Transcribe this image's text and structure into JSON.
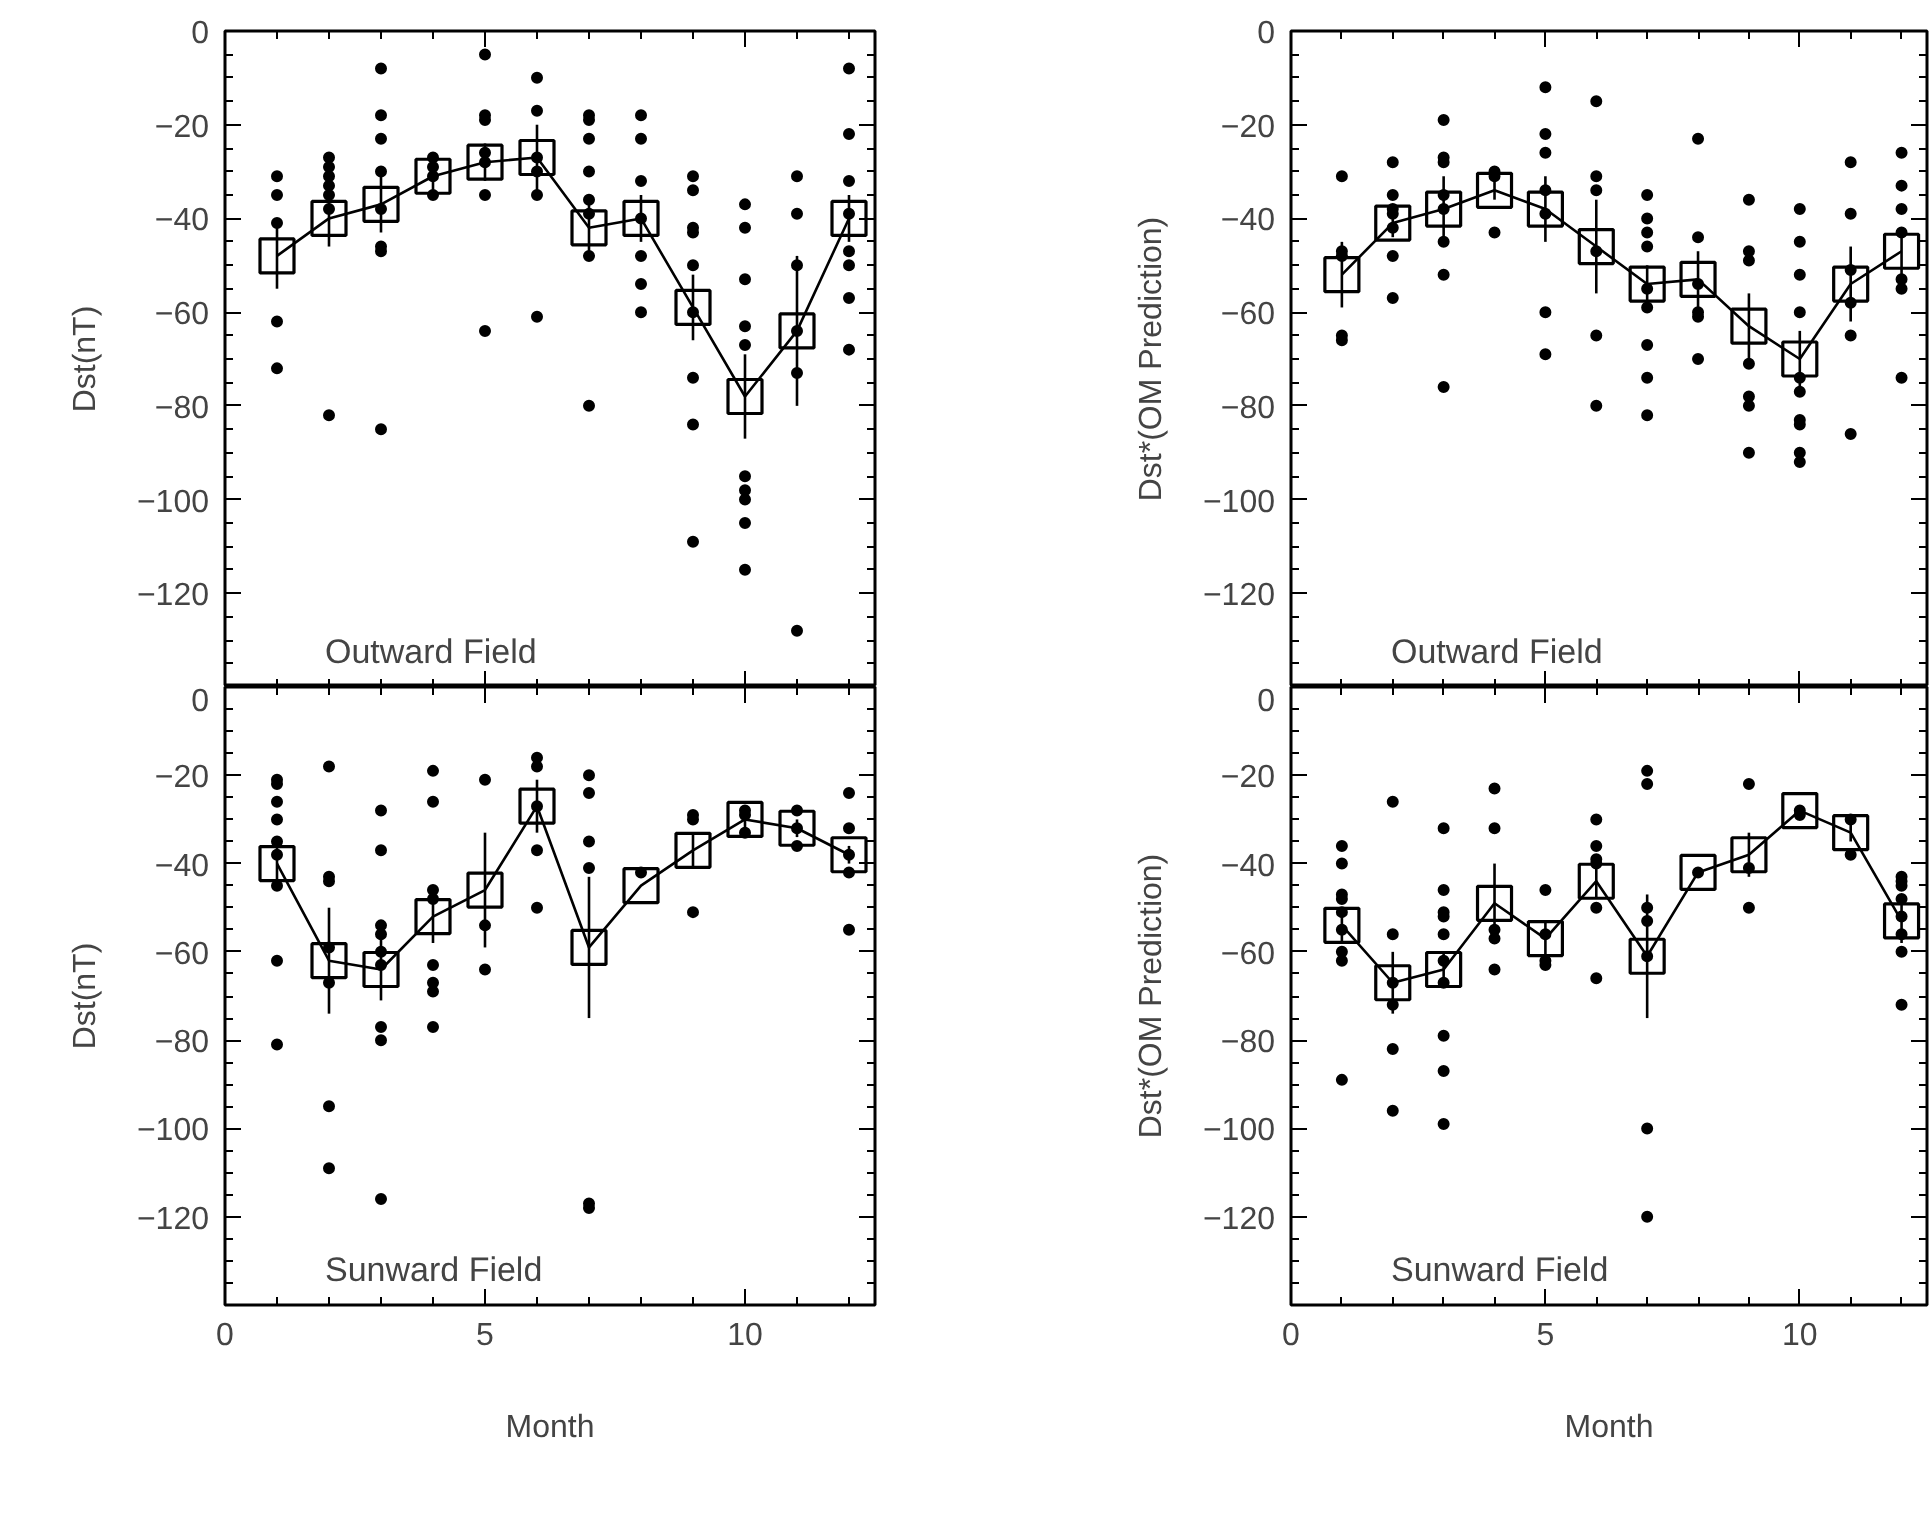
{
  "chart_data": [
    {
      "type": "scatter",
      "ylabel": "Dst(nT)",
      "annotations": [
        "Outward Field"
      ],
      "xlim": [
        0,
        12.5
      ],
      "xticks": [
        0,
        5,
        10
      ],
      "ylim": [
        -140,
        0
      ],
      "yticks": [
        0,
        -20,
        -40,
        -60,
        -80,
        -100,
        -120
      ],
      "tick_labels": "y",
      "grid": false,
      "series": [
        {
          "color": "#000000",
          "marker": "circle",
          "x": [
            1,
            1,
            1,
            1,
            1,
            2,
            2,
            2,
            2,
            2,
            2,
            2,
            3,
            3,
            3,
            3,
            3,
            3,
            3,
            3,
            4,
            4,
            4,
            4,
            5,
            5,
            5,
            5,
            5,
            5,
            5,
            6,
            6,
            6,
            6,
            6,
            6,
            7,
            7,
            7,
            7,
            7,
            7,
            7,
            7,
            8,
            8,
            8,
            8,
            8,
            8,
            8,
            9,
            9,
            9,
            9,
            9,
            9,
            9,
            9,
            9,
            10,
            10,
            10,
            10,
            10,
            10,
            10,
            10,
            10,
            10,
            11,
            11,
            11,
            11,
            11,
            11,
            12,
            12,
            12,
            12,
            12,
            12,
            12,
            12
          ],
          "values": [
            -31,
            -35,
            -41,
            -62,
            -72,
            -27,
            -29,
            -31,
            -33,
            -35,
            -38,
            -82,
            -8,
            -18,
            -23,
            -30,
            -38,
            -46,
            -47,
            -85,
            -27,
            -29,
            -31,
            -35,
            -5,
            -18,
            -19,
            -26,
            -28,
            -35,
            -64,
            -10,
            -17,
            -27,
            -30,
            -35,
            -61,
            -18,
            -19,
            -23,
            -30,
            -36,
            -39,
            -48,
            -80,
            -18,
            -23,
            -32,
            -40,
            -48,
            -54,
            -60,
            -31,
            -34,
            -42,
            -43,
            -50,
            -60,
            -74,
            -84,
            -109,
            -37,
            -42,
            -53,
            -63,
            -67,
            -95,
            -98,
            -100,
            -105,
            -115,
            -31,
            -39,
            -50,
            -64,
            -73,
            -128,
            -8,
            -22,
            -32,
            -39,
            -47,
            -50,
            -57,
            -68
          ]
        },
        {
          "type": "line",
          "color": "#000000",
          "marker": "square",
          "x": [
            1,
            2,
            3,
            4,
            5,
            6,
            7,
            8,
            9,
            10,
            11,
            12
          ],
          "values": [
            -48,
            -40,
            -37,
            -31,
            -28,
            -27,
            -42,
            -40,
            -59,
            -78,
            -64,
            -40
          ],
          "errors": [
            7,
            6,
            6,
            3,
            4,
            7,
            5,
            5,
            7,
            9,
            16,
            5
          ]
        }
      ]
    },
    {
      "type": "scatter",
      "ylabel": "Dst*(OM Prediction)",
      "annotations": [
        "Outward Field"
      ],
      "xlim": [
        0,
        12.5
      ],
      "xticks": [
        0,
        5,
        10
      ],
      "ylim": [
        -140,
        0
      ],
      "yticks": [
        0,
        -20,
        -40,
        -60,
        -80,
        -100,
        -120
      ],
      "tick_labels": "y",
      "grid": false,
      "series": [
        {
          "color": "#000000",
          "marker": "circle",
          "x": [
            1,
            1,
            1,
            1,
            1,
            2,
            2,
            2,
            2,
            2,
            2,
            2,
            3,
            3,
            3,
            3,
            3,
            3,
            3,
            3,
            4,
            4,
            4,
            5,
            5,
            5,
            5,
            5,
            5,
            5,
            6,
            6,
            6,
            6,
            6,
            6,
            7,
            7,
            7,
            7,
            7,
            7,
            7,
            7,
            7,
            8,
            8,
            8,
            8,
            8,
            8,
            9,
            9,
            9,
            9,
            9,
            9,
            9,
            10,
            10,
            10,
            10,
            10,
            10,
            10,
            10,
            10,
            10,
            11,
            11,
            11,
            11,
            11,
            11,
            12,
            12,
            12,
            12,
            12,
            12,
            12
          ],
          "values": [
            -31,
            -47,
            -48,
            -65,
            -66,
            -28,
            -35,
            -38,
            -39,
            -42,
            -48,
            -57,
            -19,
            -27,
            -28,
            -35,
            -38,
            -45,
            -52,
            -76,
            -30,
            -31,
            -43,
            -12,
            -22,
            -26,
            -34,
            -39,
            -60,
            -69,
            -15,
            -31,
            -34,
            -47,
            -65,
            -80,
            -35,
            -40,
            -43,
            -46,
            -55,
            -59,
            -67,
            -74,
            -82,
            -23,
            -44,
            -54,
            -60,
            -61,
            -70,
            -36,
            -47,
            -49,
            -71,
            -78,
            -80,
            -90,
            -38,
            -45,
            -52,
            -60,
            -74,
            -77,
            -83,
            -84,
            -90,
            -92,
            -28,
            -39,
            -51,
            -58,
            -65,
            -86,
            -26,
            -33,
            -38,
            -43,
            -53,
            -55,
            -74
          ]
        },
        {
          "type": "line",
          "color": "#000000",
          "marker": "square",
          "x": [
            1,
            2,
            3,
            4,
            5,
            6,
            7,
            8,
            9,
            10,
            11,
            12
          ],
          "values": [
            -52,
            -41,
            -38,
            -34,
            -38,
            -46,
            -54,
            -53,
            -63,
            -70,
            -54,
            -47
          ],
          "errors": [
            7,
            3,
            7,
            2,
            7,
            10,
            4,
            6,
            7,
            6,
            8,
            5
          ]
        }
      ]
    },
    {
      "type": "scatter",
      "ylabel": "Dst(nT)",
      "xlabel": "Month",
      "annotations": [
        "Sunward Field"
      ],
      "xlim": [
        0,
        12.5
      ],
      "xticks": [
        0,
        5,
        10
      ],
      "ylim": [
        -140,
        0
      ],
      "yticks": [
        0,
        -20,
        -40,
        -60,
        -80,
        -100,
        -120
      ],
      "grid": false,
      "series": [
        {
          "color": "#000000",
          "marker": "circle",
          "x": [
            1,
            1,
            1,
            1,
            1,
            1,
            1,
            1,
            1,
            2,
            2,
            2,
            2,
            2,
            2,
            2,
            3,
            3,
            3,
            3,
            3,
            3,
            3,
            3,
            3,
            4,
            4,
            4,
            4,
            4,
            4,
            4,
            4,
            5,
            5,
            5,
            6,
            6,
            6,
            6,
            6,
            7,
            7,
            7,
            7,
            7,
            7,
            8,
            9,
            9,
            9,
            10,
            10,
            10,
            11,
            11,
            11,
            12,
            12,
            12,
            12,
            12
          ],
          "values": [
            -21,
            -22,
            -26,
            -30,
            -35,
            -38,
            -45,
            -62,
            -81,
            -18,
            -43,
            -44,
            -59,
            -67,
            -95,
            -109,
            -28,
            -37,
            -54,
            -56,
            -60,
            -63,
            -77,
            -80,
            -116,
            -19,
            -26,
            -46,
            -48,
            -63,
            -67,
            -69,
            -77,
            -21,
            -54,
            -64,
            -16,
            -18,
            -27,
            -37,
            -50,
            -20,
            -24,
            -35,
            -41,
            -117,
            -118,
            -42,
            -29,
            -30,
            -51,
            -28,
            -29,
            -33,
            -28,
            -32,
            -36,
            -24,
            -32,
            -38,
            -42,
            -55
          ]
        },
        {
          "type": "line",
          "color": "#000000",
          "marker": "square",
          "x": [
            1,
            2,
            3,
            4,
            5,
            6,
            7,
            8,
            9,
            10,
            11,
            12
          ],
          "values": [
            -40,
            -62,
            -64,
            -52,
            -46,
            -27,
            -59,
            -45,
            -37,
            -30,
            -32,
            -38
          ],
          "errors": [
            4,
            12,
            7,
            6,
            13,
            6,
            16,
            null,
            4,
            2,
            2,
            2
          ]
        }
      ]
    },
    {
      "type": "scatter",
      "ylabel": "Dst*(OM Prediction)",
      "xlabel": "Month",
      "annotations": [
        "Sunward Field"
      ],
      "xlim": [
        0,
        12.5
      ],
      "xticks": [
        0,
        5,
        10
      ],
      "ylim": [
        -140,
        0
      ],
      "yticks": [
        0,
        -20,
        -40,
        -60,
        -80,
        -100,
        -120
      ],
      "grid": false,
      "series": [
        {
          "color": "#000000",
          "marker": "circle",
          "x": [
            1,
            1,
            1,
            1,
            1,
            1,
            1,
            1,
            1,
            2,
            2,
            2,
            2,
            2,
            2,
            3,
            3,
            3,
            3,
            3,
            3,
            3,
            3,
            3,
            3,
            4,
            4,
            4,
            4,
            4,
            5,
            5,
            5,
            5,
            6,
            6,
            6,
            6,
            6,
            6,
            7,
            7,
            7,
            7,
            7,
            7,
            7,
            8,
            9,
            9,
            9,
            10,
            10,
            11,
            11,
            12,
            12,
            12,
            12,
            12,
            12,
            12,
            12
          ],
          "values": [
            -36,
            -40,
            -47,
            -48,
            -51,
            -55,
            -60,
            -62,
            -89,
            -26,
            -56,
            -67,
            -72,
            -82,
            -96,
            -32,
            -46,
            -51,
            -52,
            -56,
            -62,
            -67,
            -79,
            -87,
            -99,
            -23,
            -32,
            -55,
            -57,
            -64,
            -46,
            -56,
            -62,
            -63,
            -30,
            -36,
            -39,
            -40,
            -50,
            -66,
            -19,
            -22,
            -50,
            -53,
            -61,
            -100,
            -120,
            -42,
            -22,
            -41,
            -50,
            -28,
            -29,
            -30,
            -38,
            -43,
            -44,
            -45,
            -48,
            -52,
            -56,
            -60,
            -72
          ]
        },
        {
          "type": "line",
          "color": "#000000",
          "marker": "square",
          "x": [
            1,
            2,
            3,
            4,
            5,
            6,
            7,
            8,
            9,
            10,
            11,
            12
          ],
          "values": [
            -54,
            -67,
            -64,
            -49,
            -57,
            -44,
            -61,
            -42,
            -38,
            -28,
            -33,
            -53
          ],
          "errors": [
            4,
            7,
            4,
            9,
            4,
            4,
            14,
            null,
            5,
            1,
            2,
            5
          ]
        }
      ]
    }
  ]
}
